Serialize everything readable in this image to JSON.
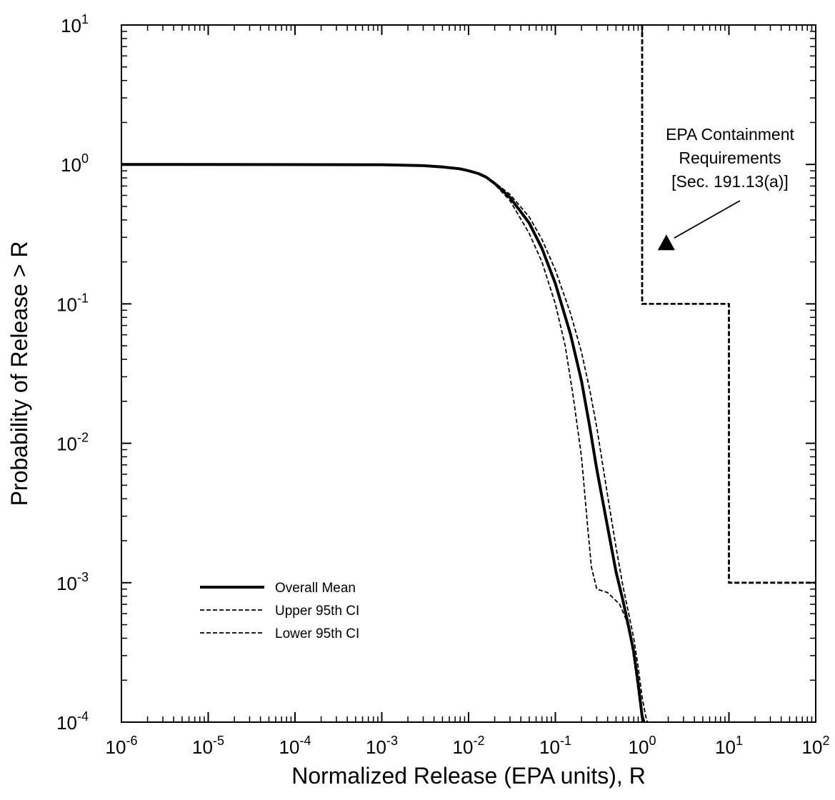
{
  "chart_data": {
    "type": "line",
    "title": "",
    "xlabel": "Normalized Release (EPA units), R",
    "ylabel": "Probability of Release > R",
    "x_scale": "log",
    "y_scale": "log",
    "xlim": [
      1e-06,
      100
    ],
    "ylim": [
      0.0001,
      10
    ],
    "grid": false,
    "legend_position": "lower-left",
    "x_ticks": [
      {
        "base": "10",
        "exp": "-6"
      },
      {
        "base": "10",
        "exp": "-5"
      },
      {
        "base": "10",
        "exp": "-4"
      },
      {
        "base": "10",
        "exp": "-3"
      },
      {
        "base": "10",
        "exp": "-2"
      },
      {
        "base": "10",
        "exp": "-1"
      },
      {
        "base": "10",
        "exp": "0"
      },
      {
        "base": "10",
        "exp": "1"
      },
      {
        "base": "10",
        "exp": "2"
      }
    ],
    "y_ticks": [
      {
        "base": "10",
        "exp": "-4"
      },
      {
        "base": "10",
        "exp": "-3"
      },
      {
        "base": "10",
        "exp": "-2"
      },
      {
        "base": "10",
        "exp": "-1"
      },
      {
        "base": "10",
        "exp": "0"
      },
      {
        "base": "10",
        "exp": "1"
      }
    ],
    "series": [
      {
        "name": "Overall Mean",
        "style": "solid-thick",
        "color": "#000000",
        "x": [
          1e-06,
          0.001,
          0.003,
          0.005,
          0.008,
          0.01,
          0.013,
          0.016,
          0.02,
          0.03,
          0.05,
          0.07,
          0.1,
          0.15,
          0.2,
          0.25,
          0.3,
          0.4,
          0.5,
          0.6,
          0.7,
          0.8,
          0.9,
          1.0,
          1.05
        ],
        "y": [
          1.0,
          0.995,
          0.98,
          0.96,
          0.93,
          0.9,
          0.86,
          0.81,
          0.73,
          0.58,
          0.38,
          0.25,
          0.14,
          0.06,
          0.028,
          0.013,
          0.0065,
          0.0025,
          0.0012,
          0.00075,
          0.00048,
          0.00032,
          0.00019,
          0.00011,
          0.0001
        ]
      },
      {
        "name": "Upper 95th CI",
        "style": "dashed",
        "color": "#000000",
        "x": [
          1e-06,
          0.001,
          0.003,
          0.005,
          0.008,
          0.01,
          0.013,
          0.016,
          0.02,
          0.03,
          0.05,
          0.07,
          0.1,
          0.15,
          0.2,
          0.25,
          0.3,
          0.4,
          0.5,
          0.6,
          0.7,
          0.8,
          0.9,
          1.0,
          1.1,
          1.15
        ],
        "y": [
          1.0,
          0.995,
          0.98,
          0.96,
          0.93,
          0.9,
          0.86,
          0.81,
          0.74,
          0.61,
          0.42,
          0.29,
          0.175,
          0.085,
          0.045,
          0.024,
          0.013,
          0.0042,
          0.0018,
          0.00095,
          0.0006,
          0.0004,
          0.00025,
          0.00015,
          0.00011,
          0.0001
        ]
      },
      {
        "name": "Lower 95th CI",
        "style": "dashed",
        "color": "#000000",
        "x": [
          1e-06,
          0.001,
          0.003,
          0.005,
          0.008,
          0.01,
          0.013,
          0.016,
          0.02,
          0.03,
          0.05,
          0.07,
          0.1,
          0.13,
          0.16,
          0.2,
          0.23,
          0.26,
          0.3,
          0.4,
          0.55,
          0.65,
          0.75,
          0.85,
          0.95,
          1.0
        ],
        "y": [
          1.0,
          0.995,
          0.98,
          0.96,
          0.93,
          0.9,
          0.86,
          0.81,
          0.72,
          0.55,
          0.32,
          0.2,
          0.1,
          0.05,
          0.022,
          0.008,
          0.003,
          0.0013,
          0.0009,
          0.00085,
          0.0007,
          0.00055,
          0.00038,
          0.00022,
          0.00013,
          0.0001
        ]
      },
      {
        "name": "EPA Containment Requirements",
        "style": "dashed-thick",
        "color": "#000000",
        "x": [
          1,
          1,
          10,
          10,
          100
        ],
        "y": [
          10,
          0.1,
          0.1,
          0.001,
          0.001
        ]
      }
    ],
    "annotations": [
      {
        "lines": [
          "EPA Containment",
          "Requirements",
          "[Sec. 191.13(a)]"
        ],
        "marker_x": 1.9,
        "marker_y": 0.27
      }
    ]
  }
}
